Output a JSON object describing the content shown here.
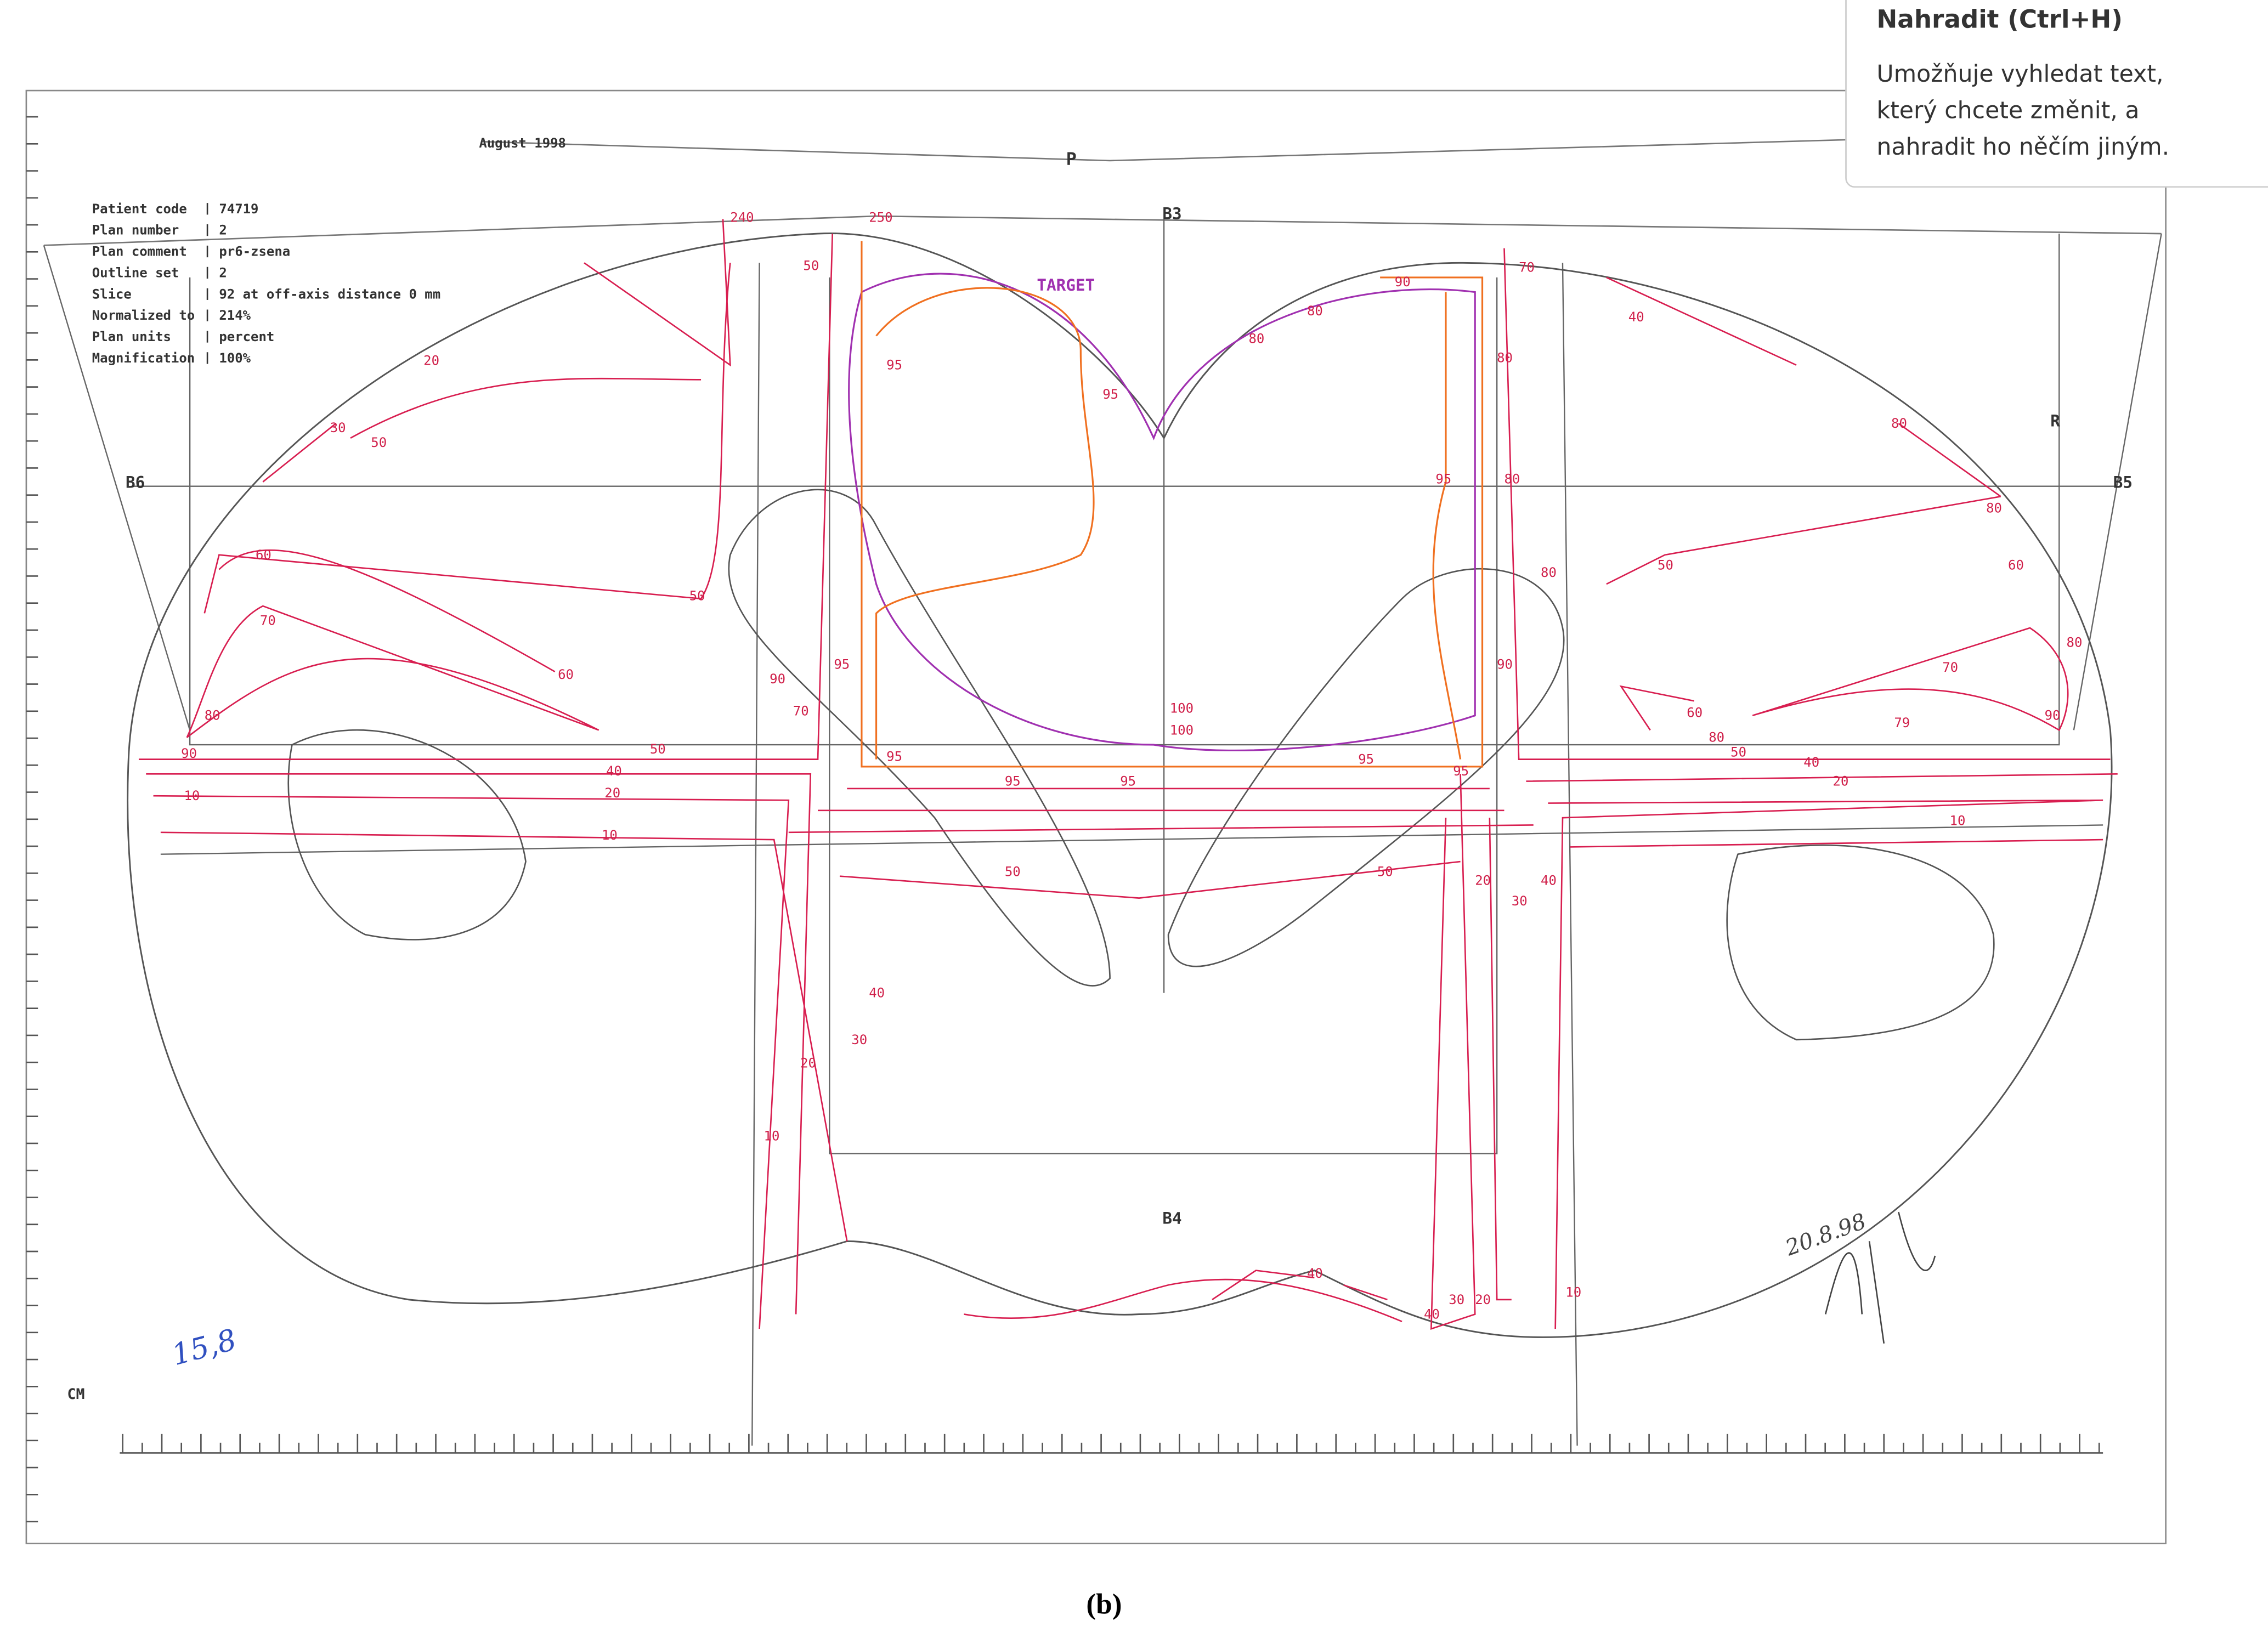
{
  "tooltip": {
    "title": "Nahradit (Ctrl+H)",
    "lines": [
      "Umožňuje vyhledat text,",
      "který chcete změnit, a",
      "nahradit ho něčím jiným."
    ]
  },
  "plan": {
    "date": "August 1998",
    "beam_labels": [
      "P",
      "B3",
      "B4",
      "B5",
      "B6",
      "R"
    ],
    "target_label": "TARGET",
    "info": [
      {
        "key": "Patient code",
        "value": "74719"
      },
      {
        "key": "Plan number",
        "value": "2"
      },
      {
        "key": "Plan comment",
        "value": "pr6-zsena"
      },
      {
        "key": "Outline set",
        "value": "2"
      },
      {
        "key": "Slice",
        "value": "92 at off-axis distance 0 mm"
      },
      {
        "key": "Normalized to",
        "value": "214%"
      },
      {
        "key": "Plan units",
        "value": "percent"
      },
      {
        "key": "Magnification",
        "value": "100%"
      }
    ],
    "isodose_labels": [
      "240",
      "50",
      "250",
      "30",
      "50",
      "20",
      "60",
      "70",
      "50",
      "60",
      "80",
      "90",
      "50",
      "40",
      "20",
      "10",
      "10",
      "90",
      "70",
      "95",
      "95",
      "95",
      "50",
      "95",
      "95",
      "100",
      "100",
      "95",
      "50",
      "95",
      "95",
      "95",
      "80",
      "80",
      "80",
      "90",
      "40",
      "30",
      "20",
      "40",
      "50",
      "60",
      "80",
      "50",
      "40",
      "20",
      "10",
      "70",
      "79",
      "60",
      "80",
      "90",
      "80",
      "80",
      "70",
      "80",
      "80",
      "40",
      "30",
      "20",
      "10",
      "40",
      "40",
      "30",
      "20",
      "10",
      "90"
    ],
    "axis_unit": "CM",
    "handwritten": [
      "15,8",
      "20.8.98"
    ]
  },
  "caption": "(b)"
}
